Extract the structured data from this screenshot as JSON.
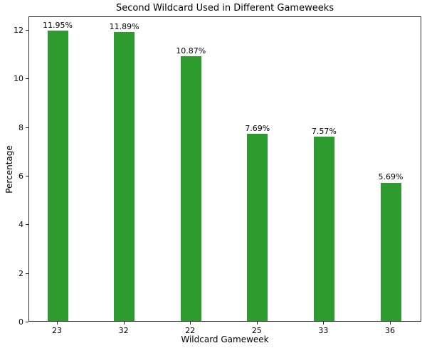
{
  "figure": {
    "background_color": "#ffffff",
    "text_color": "#000000",
    "frame_color": "#2b2b2b"
  },
  "chart_data": {
    "type": "bar",
    "title": "Second Wildcard Used in Different Gameweeks",
    "xlabel": "Wildcard Gameweek",
    "ylabel": "Percentage",
    "categories": [
      "23",
      "32",
      "22",
      "25",
      "33",
      "36"
    ],
    "values": [
      11.95,
      11.89,
      10.87,
      7.69,
      7.57,
      5.69
    ],
    "value_labels": [
      "11.95%",
      "11.89%",
      "10.87%",
      "7.69%",
      "7.57%",
      "5.69%"
    ],
    "series": [
      {
        "name": "Percentage",
        "values": [
          11.95,
          11.89,
          10.87,
          7.69,
          7.57,
          5.69
        ]
      }
    ],
    "bar_color": "#2e9b2e",
    "yticks": [
      0,
      2,
      4,
      6,
      8,
      10,
      12
    ],
    "ylim": [
      0,
      12.55
    ],
    "grid": false,
    "legend_position": "none"
  }
}
